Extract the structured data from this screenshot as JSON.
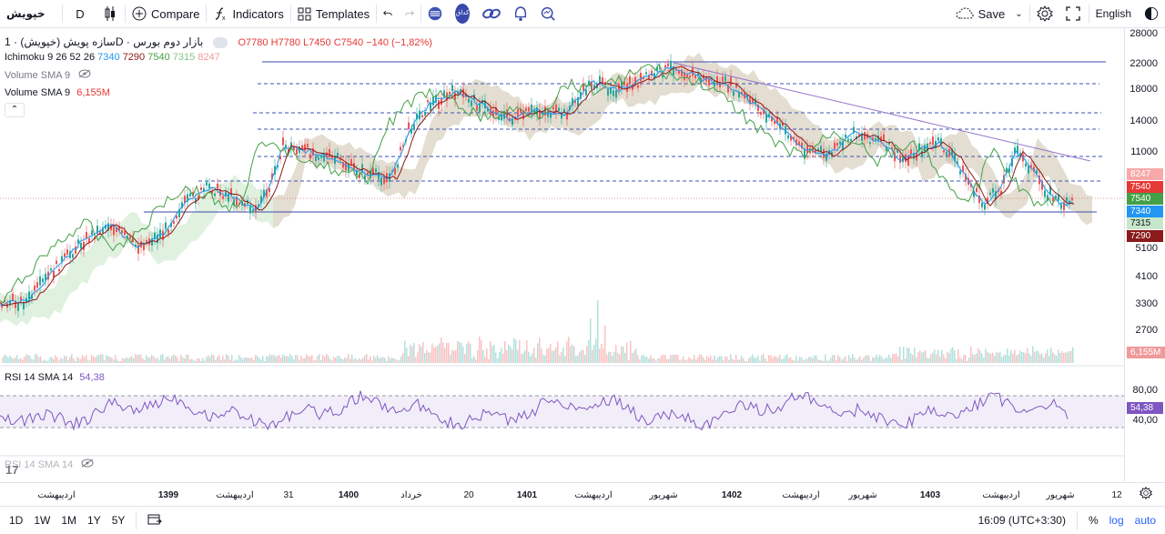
{
  "toolbar": {
    "symbol": "خپویش",
    "interval": "D",
    "compare": "Compare",
    "indicators": "Indicators",
    "templates": "Templates",
    "save": "Save",
    "language": "English",
    "icon_badge_text": "کداق"
  },
  "legend": {
    "title": "سازه پویش (خپویش) · 1D · بازار دوم بورس",
    "open": "O7780",
    "high": "H7780",
    "low": "L7450",
    "close": "C7540",
    "change": "−140 (−1,82%)",
    "ichimoku_label": "Ichimoku 9 26 52 26",
    "ichimoku_values": [
      "7340",
      "7290",
      "7540",
      "7315",
      "8247"
    ],
    "volume_label": "Volume SMA 9",
    "volume_value": "6,155M",
    "volume2_label": "Volume SMA 9",
    "rsi_label": "RSI 14 SMA 14",
    "rsi_value": "54,38",
    "rsi2_label": "RSI 14 SMA 14"
  },
  "price_axis": {
    "labels": [
      "28000",
      "22000",
      "18000",
      "14000",
      "11000",
      "5100",
      "4100",
      "3300",
      "2700"
    ],
    "tags": [
      {
        "text": "8247",
        "color": "#f7a8a8"
      },
      {
        "text": "7540",
        "color": "#e53935"
      },
      {
        "text": "7540",
        "color": "#43a047"
      },
      {
        "text": "7340",
        "color": "#2196f3"
      },
      {
        "text": "7315",
        "color": "#a5d6a7"
      },
      {
        "text": "7290",
        "color": "#8b1a1a"
      }
    ],
    "volume_tag": "6,155M",
    "rsi_tag": "54,38",
    "rsi_labels": [
      "80,00",
      "40,00"
    ]
  },
  "time_axis": {
    "labels": [
      "اردیبهشت",
      "1399",
      "اردیبهشت",
      "31",
      "1400",
      "خرداد",
      "20",
      "1401",
      "اردیبهشت",
      "شهریور",
      "1402",
      "اردیبهشت",
      "شهریور",
      "1403",
      "اردیبهشت",
      "شهریور",
      "12"
    ]
  },
  "bottom": {
    "ranges": [
      "1D",
      "1W",
      "1M",
      "1Y",
      "5Y"
    ],
    "clock": "16:09 (UTC+3:30)",
    "percent": "%",
    "log": "log",
    "auto": "auto"
  },
  "watermark": "17"
}
